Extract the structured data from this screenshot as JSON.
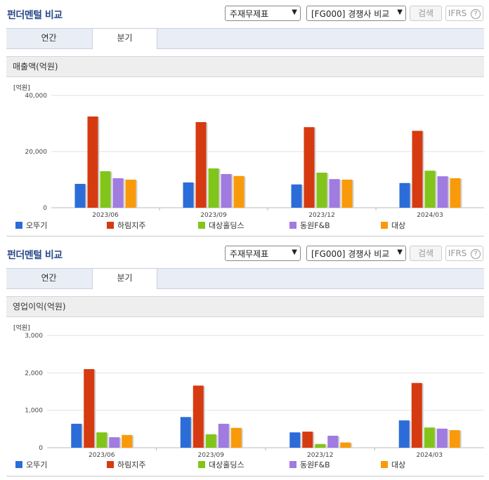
{
  "panels": [
    {
      "title": "펀더멘털 비교",
      "select1": "주재무제표",
      "select2": "[FG000] 경쟁사 비교",
      "search_button": "검색",
      "ifrs_label": "IFRS",
      "help_icon": "?",
      "tabs": [
        "연간",
        "분기"
      ],
      "active_tab": "분기",
      "metric_title": "매출액(억원)"
    },
    {
      "title": "펀더멘털 비교",
      "select1": "주재무제표",
      "select2": "[FG000] 경쟁사 비교",
      "search_button": "검색",
      "ifrs_label": "IFRS",
      "help_icon": "?",
      "tabs": [
        "연간",
        "분기"
      ],
      "active_tab": "분기",
      "metric_title": "영업이익(억원)"
    }
  ],
  "chart_data": [
    {
      "type": "bar",
      "unit_label": "[억원]",
      "categories": [
        "2023/06",
        "2023/09",
        "2023/12",
        "2024/03"
      ],
      "ylim": [
        0,
        40000
      ],
      "yticks": [
        "0",
        "20,000",
        "40,000"
      ],
      "ytick_values": [
        0,
        20000,
        40000
      ],
      "grid": true,
      "legend_position": "bottom",
      "series": [
        {
          "name": "오뚜기",
          "color": "#2b6cd9",
          "values": [
            8500,
            9000,
            8300,
            8800
          ]
        },
        {
          "name": "하림지주",
          "color": "#d63a10",
          "values": [
            32500,
            30500,
            28700,
            27400
          ]
        },
        {
          "name": "대상홀딩스",
          "color": "#82c51a",
          "values": [
            13000,
            14000,
            12500,
            13200
          ]
        },
        {
          "name": "동원F&B",
          "color": "#a07be0",
          "values": [
            10500,
            12000,
            10200,
            11200
          ]
        },
        {
          "name": "대상",
          "color": "#f89a0a",
          "values": [
            10000,
            11300,
            10000,
            10500
          ]
        }
      ]
    },
    {
      "type": "bar",
      "unit_label": "[억원]",
      "categories": [
        "2023/06",
        "2023/09",
        "2023/12",
        "2024/03"
      ],
      "ylim": [
        0,
        3000
      ],
      "yticks": [
        "0",
        "1,000",
        "2,000",
        "3,000"
      ],
      "ytick_values": [
        0,
        1000,
        2000,
        3000
      ],
      "grid": true,
      "legend_position": "bottom",
      "series": [
        {
          "name": "오뚜기",
          "color": "#2b6cd9",
          "values": [
            640,
            820,
            410,
            730
          ]
        },
        {
          "name": "하림지주",
          "color": "#d63a10",
          "values": [
            2100,
            1660,
            430,
            1730
          ]
        },
        {
          "name": "대상홀딩스",
          "color": "#82c51a",
          "values": [
            410,
            360,
            100,
            540
          ]
        },
        {
          "name": "동원F&B",
          "color": "#a07be0",
          "values": [
            280,
            640,
            320,
            510
          ]
        },
        {
          "name": "대상",
          "color": "#f89a0a",
          "values": [
            340,
            530,
            140,
            470
          ]
        }
      ]
    }
  ]
}
